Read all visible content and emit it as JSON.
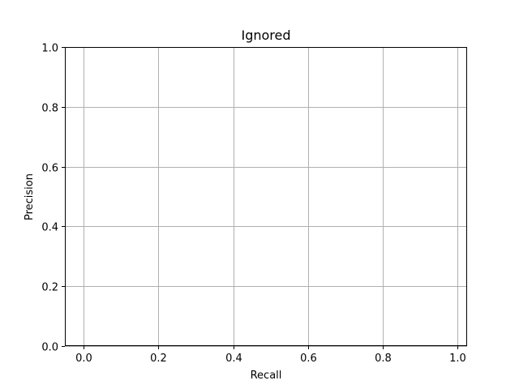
{
  "chart_data": {
    "type": "line",
    "title": "Ignored",
    "xlabel": "Recall",
    "ylabel": "Precision",
    "xlim": [
      -0.05,
      1.025
    ],
    "ylim": [
      0.0,
      1.0
    ],
    "x_ticks": [
      0.0,
      0.2,
      0.4,
      0.6,
      0.8,
      1.0
    ],
    "x_tick_labels": [
      "0.0",
      "0.2",
      "0.4",
      "0.6",
      "0.8",
      "1.0"
    ],
    "y_ticks": [
      0.0,
      0.2,
      0.4,
      0.6,
      0.8,
      1.0
    ],
    "y_tick_labels": [
      "0.0",
      "0.2",
      "0.4",
      "0.6",
      "0.8",
      "1.0"
    ],
    "grid": true,
    "series": [],
    "colors": {
      "grid": "#b0b0b0",
      "axes": "#000000",
      "background": "#ffffff"
    }
  }
}
